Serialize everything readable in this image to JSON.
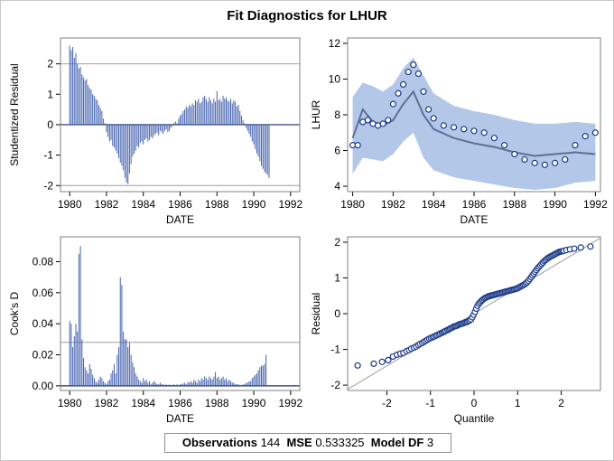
{
  "title": "Fit Diagnostics for LHUR",
  "footer": {
    "obs_label": "Observations",
    "obs_value": "144",
    "mse_label": "MSE",
    "mse_value": "0.533325",
    "df_label": "Model DF",
    "df_value": "3"
  },
  "colors": {
    "bar": "#4563b0",
    "band": "#b3c7e9",
    "line": "#5e7096",
    "marker": "#1c3a8c",
    "ref": "#a0a0a0"
  },
  "chart_data": [
    {
      "id": "residual",
      "type": "bar",
      "title": "",
      "xlabel": "DATE",
      "ylabel": "Studentized Residual",
      "xlim": [
        1979.5,
        1992.5
      ],
      "ylim": [
        -2.2,
        2.85
      ],
      "xticks": [
        1980,
        1982,
        1984,
        1986,
        1988,
        1990,
        1992
      ],
      "yticks": [
        -2,
        -1,
        0,
        1,
        2
      ],
      "reflines": [
        -2,
        0,
        2
      ],
      "x_start": 1980.0,
      "x_step": 0.08333,
      "values": [
        2.6,
        2.45,
        2.55,
        2.2,
        2.35,
        2.0,
        1.85,
        1.9,
        1.65,
        1.55,
        1.45,
        1.5,
        1.3,
        1.2,
        1.15,
        1.0,
        0.95,
        0.85,
        0.8,
        0.65,
        0.55,
        0.45,
        0.2,
        0.05,
        -0.25,
        -0.4,
        -0.55,
        -0.5,
        -0.7,
        -0.75,
        -0.85,
        -0.95,
        -1.1,
        -1.25,
        -1.35,
        -1.5,
        -1.75,
        -1.9,
        -1.95,
        -1.6,
        -1.3,
        -1.05,
        -0.95,
        -0.85,
        -0.7,
        -0.75,
        -0.6,
        -0.55,
        -0.65,
        -0.5,
        -0.45,
        -0.55,
        -0.5,
        -0.4,
        -0.45,
        -0.35,
        -0.3,
        -0.25,
        -0.35,
        -0.2,
        -0.25,
        -0.3,
        -0.2,
        -0.15,
        -0.25,
        -0.2,
        -0.1,
        -0.05,
        0.05,
        0.1,
        0.05,
        0.2,
        0.3,
        0.35,
        0.45,
        0.5,
        0.6,
        0.55,
        0.65,
        0.6,
        0.7,
        0.65,
        0.8,
        0.75,
        0.85,
        0.7,
        0.75,
        0.9,
        0.95,
        0.85,
        0.75,
        0.9,
        0.8,
        0.7,
        0.85,
        0.75,
        1.1,
        0.8,
        0.85,
        0.75,
        0.95,
        0.85,
        0.9,
        0.8,
        0.75,
        0.85,
        0.7,
        0.8,
        0.75,
        0.6,
        0.65,
        0.45,
        0.3,
        0.15,
        0.05,
        -0.1,
        -0.2,
        -0.3,
        -0.4,
        -0.55,
        -0.65,
        -0.8,
        -0.95,
        -1.05,
        -1.2,
        -1.35,
        -1.45,
        -1.55,
        -1.6,
        -1.65,
        -1.75
      ]
    },
    {
      "id": "fit",
      "type": "line",
      "title": "",
      "xlabel": "DATE",
      "ylabel": "LHUR",
      "xlim": [
        1979.75,
        1992.25
      ],
      "ylim": [
        3.7,
        12.3
      ],
      "xticks": [
        1980,
        1982,
        1984,
        1986,
        1988,
        1990,
        1992
      ],
      "yticks": [
        4,
        6,
        8,
        10,
        12
      ],
      "series": [
        {
          "kind": "band",
          "x": [
            1980,
            1980.5,
            1981,
            1981.5,
            1982,
            1982.5,
            1983,
            1983.5,
            1984,
            1985,
            1986,
            1987,
            1988,
            1989,
            1990,
            1991,
            1992
          ],
          "lower": [
            4.7,
            5.6,
            5.5,
            5.4,
            5.8,
            6.5,
            7.0,
            5.6,
            4.9,
            4.5,
            4.3,
            4.1,
            3.9,
            3.8,
            3.9,
            4.2,
            4.3
          ],
          "upper": [
            9.0,
            9.8,
            9.6,
            9.3,
            9.7,
            10.6,
            11.2,
            10.2,
            9.2,
            8.5,
            8.2,
            8.0,
            7.7,
            7.5,
            7.5,
            7.6,
            7.5
          ]
        },
        {
          "kind": "line",
          "x": [
            1980,
            1980.5,
            1981,
            1981.5,
            1982,
            1982.5,
            1983,
            1983.5,
            1984,
            1985,
            1986,
            1987,
            1988,
            1989,
            1990,
            1991,
            1992
          ],
          "y": [
            6.7,
            8.3,
            7.6,
            7.4,
            7.7,
            8.6,
            9.3,
            8.0,
            7.2,
            6.7,
            6.4,
            6.2,
            5.9,
            5.7,
            5.8,
            5.9,
            5.8
          ]
        },
        {
          "kind": "markers",
          "x": [
            1980,
            1980.25,
            1980.5,
            1980.75,
            1981,
            1981.25,
            1981.5,
            1981.75,
            1982,
            1982.25,
            1982.5,
            1982.75,
            1983,
            1983.25,
            1983.5,
            1983.75,
            1984,
            1984.5,
            1985,
            1985.5,
            1986,
            1986.5,
            1987,
            1987.5,
            1988,
            1988.5,
            1989,
            1989.5,
            1990,
            1990.5,
            1991,
            1991.5,
            1992
          ],
          "y": [
            6.3,
            6.3,
            7.6,
            7.7,
            7.5,
            7.4,
            7.5,
            7.7,
            8.6,
            9.2,
            9.7,
            10.4,
            10.8,
            10.3,
            9.3,
            8.3,
            7.8,
            7.4,
            7.3,
            7.2,
            7.1,
            7.0,
            6.7,
            6.3,
            5.8,
            5.5,
            5.3,
            5.2,
            5.3,
            5.5,
            6.3,
            6.8,
            7.0
          ]
        }
      ]
    },
    {
      "id": "cooksd",
      "type": "bar",
      "title": "",
      "xlabel": "DATE",
      "ylabel": "Cook's D",
      "xlim": [
        1979.5,
        1992.5
      ],
      "ylim": [
        -0.003,
        0.096
      ],
      "xticks": [
        1980,
        1982,
        1984,
        1986,
        1988,
        1990,
        1992
      ],
      "yticks": [
        0.0,
        0.02,
        0.04,
        0.06,
        0.08
      ],
      "ytick_labels": [
        "0.00",
        "0.02",
        "0.04",
        "0.06",
        "0.08"
      ],
      "reflines": [
        0,
        0.028
      ],
      "x_start": 1980.0,
      "x_step": 0.08333,
      "values": [
        0.042,
        0.04,
        0.025,
        0.032,
        0.04,
        0.035,
        0.085,
        0.09,
        0.03,
        0.018,
        0.012,
        0.01,
        0.008,
        0.014,
        0.011,
        0.007,
        0.005,
        0.003,
        0.002,
        0.004,
        0.006,
        0.005,
        0.003,
        0.002,
        0.001,
        0.003,
        0.004,
        0.008,
        0.01,
        0.014,
        0.008,
        0.02,
        0.025,
        0.07,
        0.065,
        0.035,
        0.03,
        0.03,
        0.025,
        0.028,
        0.02,
        0.015,
        0.012,
        0.008,
        0.006,
        0.004,
        0.003,
        0.002,
        0.005,
        0.003,
        0.004,
        0.002,
        0.003,
        0.001,
        0.002,
        0.003,
        0.002,
        0.001,
        0.001,
        0.002,
        0.001,
        0.001,
        0.0005,
        0.001,
        0.0005,
        0.001,
        0.0005,
        0.0005,
        0.001,
        0.0005,
        0.001,
        0.0005,
        0.001,
        0.001,
        0.0015,
        0.002,
        0.001,
        0.0025,
        0.002,
        0.003,
        0.002,
        0.004,
        0.003,
        0.002,
        0.004,
        0.003,
        0.005,
        0.004,
        0.006,
        0.005,
        0.004,
        0.006,
        0.005,
        0.004,
        0.006,
        0.009,
        0.005,
        0.006,
        0.004,
        0.005,
        0.006,
        0.004,
        0.005,
        0.003,
        0.004,
        0.003,
        0.002,
        0.002,
        0.001,
        0.001,
        0.001,
        0.0005,
        0.0005,
        0.001,
        0.001,
        0.002,
        0.002,
        0.003,
        0.003,
        0.005,
        0.006,
        0.007,
        0.008,
        0.01,
        0.012,
        0.013,
        0.013,
        0.014,
        0.02
      ]
    },
    {
      "id": "qq",
      "type": "scatter",
      "title": "",
      "xlabel": "Quantile",
      "ylabel": "Residual",
      "xlim": [
        -2.9,
        2.9
      ],
      "ylim": [
        -2.15,
        2.15
      ],
      "xticks": [
        -2,
        -1,
        0,
        1,
        2
      ],
      "yticks": [
        -2,
        -1,
        0,
        1,
        2
      ],
      "refline": {
        "intercept": 0.0,
        "slope": 0.73
      },
      "x": [
        -2.67,
        -2.3,
        -2.11,
        -1.97,
        -1.86,
        -1.77,
        -1.69,
        -1.62,
        -1.55,
        -1.49,
        -1.44,
        -1.38,
        -1.33,
        -1.28,
        -1.24,
        -1.19,
        -1.15,
        -1.11,
        -1.07,
        -1.03,
        -0.99,
        -0.95,
        -0.92,
        -0.88,
        -0.85,
        -0.81,
        -0.78,
        -0.74,
        -0.71,
        -0.68,
        -0.65,
        -0.61,
        -0.58,
        -0.55,
        -0.52,
        -0.49,
        -0.46,
        -0.43,
        -0.4,
        -0.37,
        -0.34,
        -0.31,
        -0.28,
        -0.25,
        -0.22,
        -0.19,
        -0.16,
        -0.13,
        -0.1,
        -0.07,
        -0.04,
        -0.01,
        0.02,
        0.05,
        0.08,
        0.11,
        0.14,
        0.17,
        0.2,
        0.23,
        0.26,
        0.29,
        0.32,
        0.35,
        0.38,
        0.41,
        0.44,
        0.47,
        0.5,
        0.53,
        0.56,
        0.59,
        0.62,
        0.65,
        0.68,
        0.71,
        0.74,
        0.77,
        0.8,
        0.83,
        0.86,
        0.89,
        0.92,
        0.95,
        0.98,
        1.01,
        1.04,
        1.07,
        1.1,
        1.13,
        1.16,
        1.19,
        1.22,
        1.25,
        1.28,
        1.31,
        1.34,
        1.37,
        1.4,
        1.43,
        1.46,
        1.49,
        1.52,
        1.55,
        1.58,
        1.61,
        1.64,
        1.67,
        1.7,
        1.73,
        1.76,
        1.79,
        1.82,
        1.85,
        1.88,
        1.91,
        1.94,
        1.97,
        2.0,
        2.03,
        2.06,
        2.12,
        2.2,
        2.3,
        2.45,
        2.67
      ],
      "y": [
        -1.45,
        -1.4,
        -1.35,
        -1.3,
        -1.2,
        -1.15,
        -1.12,
        -1.1,
        -1.05,
        -1.02,
        -0.98,
        -0.95,
        -0.92,
        -0.88,
        -0.85,
        -0.82,
        -0.79,
        -0.76,
        -0.73,
        -0.7,
        -0.68,
        -0.66,
        -0.64,
        -0.62,
        -0.6,
        -0.58,
        -0.56,
        -0.54,
        -0.52,
        -0.5,
        -0.48,
        -0.46,
        -0.44,
        -0.42,
        -0.4,
        -0.38,
        -0.36,
        -0.35,
        -0.34,
        -0.32,
        -0.3,
        -0.29,
        -0.28,
        -0.27,
        -0.25,
        -0.24,
        -0.23,
        -0.21,
        -0.19,
        -0.16,
        -0.1,
        -0.03,
        0.05,
        0.14,
        0.22,
        0.28,
        0.32,
        0.36,
        0.39,
        0.42,
        0.44,
        0.46,
        0.48,
        0.49,
        0.5,
        0.51,
        0.52,
        0.53,
        0.54,
        0.55,
        0.56,
        0.57,
        0.58,
        0.59,
        0.6,
        0.61,
        0.62,
        0.63,
        0.64,
        0.65,
        0.66,
        0.67,
        0.68,
        0.69,
        0.7,
        0.72,
        0.74,
        0.76,
        0.78,
        0.8,
        0.82,
        0.85,
        0.88,
        0.92,
        0.97,
        1.02,
        1.07,
        1.12,
        1.17,
        1.22,
        1.27,
        1.31,
        1.35,
        1.39,
        1.43,
        1.47,
        1.5,
        1.53,
        1.56,
        1.58,
        1.6,
        1.62,
        1.64,
        1.66,
        1.68,
        1.7,
        1.72,
        1.73,
        1.74,
        1.75,
        1.76,
        1.78,
        1.8,
        1.82,
        1.85,
        1.88
      ]
    }
  ]
}
